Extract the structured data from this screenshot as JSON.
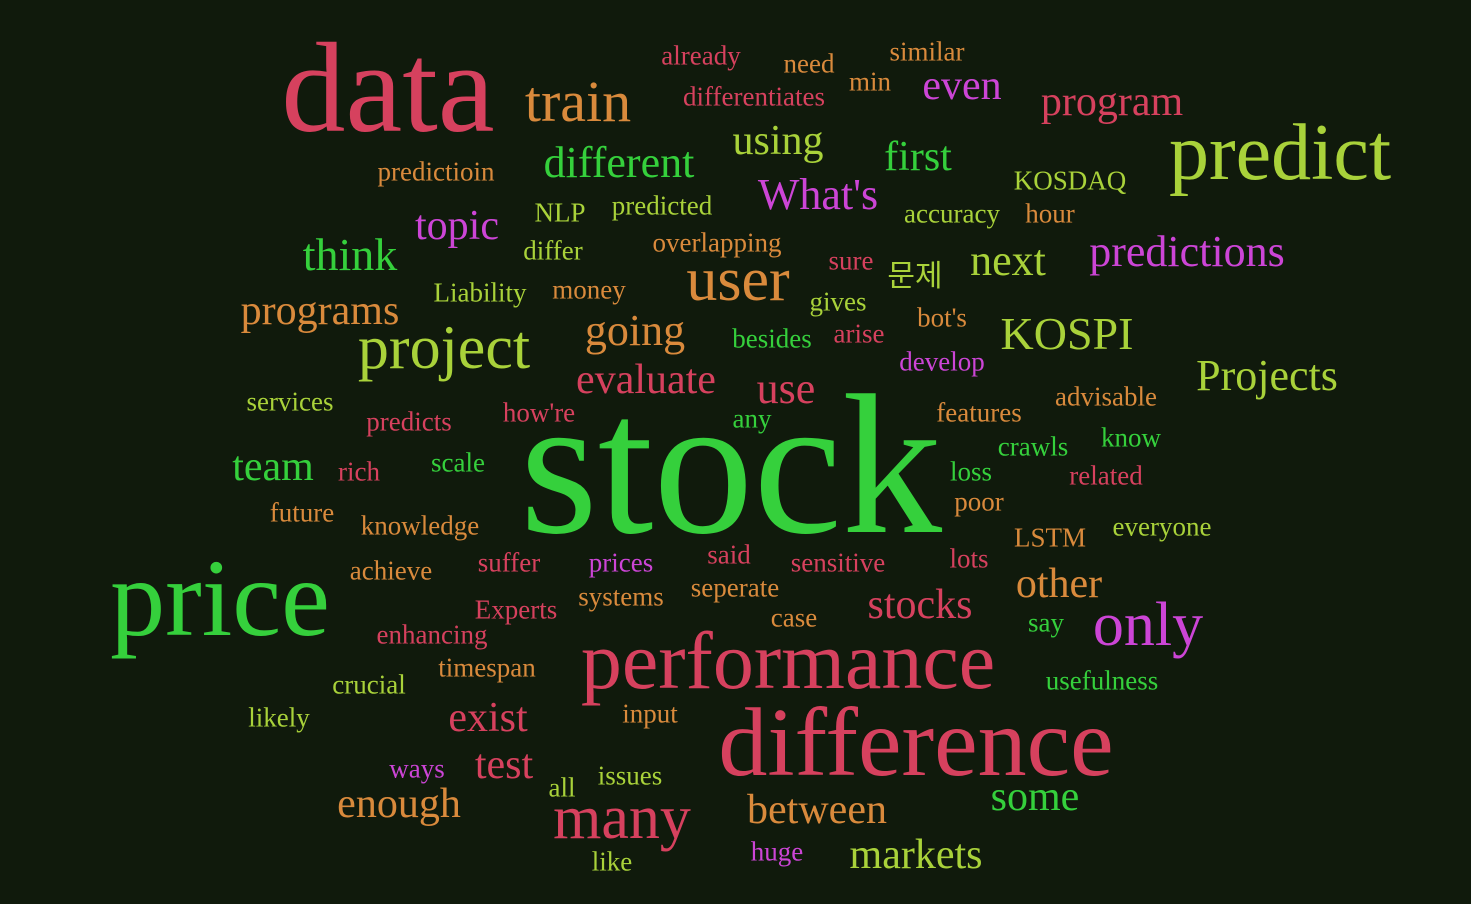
{
  "words": [
    {
      "id": "stock",
      "text": "stock",
      "color": "green"
    },
    {
      "id": "data",
      "text": "data",
      "color": "red"
    },
    {
      "id": "price",
      "text": "price",
      "color": "green"
    },
    {
      "id": "difference",
      "text": "difference",
      "color": "red"
    },
    {
      "id": "performance",
      "text": "performance",
      "color": "red"
    },
    {
      "id": "predict",
      "text": "predict",
      "color": "lime"
    },
    {
      "id": "train",
      "text": "train",
      "color": "orange"
    },
    {
      "id": "project",
      "text": "project",
      "color": "lime"
    },
    {
      "id": "user",
      "text": "user",
      "color": "orange"
    },
    {
      "id": "many",
      "text": "many",
      "color": "red"
    },
    {
      "id": "only",
      "text": "only",
      "color": "magenta"
    },
    {
      "id": "different",
      "text": "different",
      "color": "green"
    },
    {
      "id": "program",
      "text": "program",
      "color": "red"
    },
    {
      "id": "using",
      "text": "using",
      "color": "lime"
    },
    {
      "id": "first",
      "text": "first",
      "color": "green"
    },
    {
      "id": "whats",
      "text": "What's",
      "color": "magenta"
    },
    {
      "id": "topic",
      "text": "topic",
      "color": "magenta"
    },
    {
      "id": "think",
      "text": "think",
      "color": "green"
    },
    {
      "id": "programs",
      "text": "programs",
      "color": "orange"
    },
    {
      "id": "going",
      "text": "going",
      "color": "orange"
    },
    {
      "id": "evaluate",
      "text": "evaluate",
      "color": "red"
    },
    {
      "id": "use",
      "text": "use",
      "color": "red"
    },
    {
      "id": "kospi",
      "text": "KOSPI",
      "color": "lime"
    },
    {
      "id": "next",
      "text": "next",
      "color": "lime"
    },
    {
      "id": "predictions",
      "text": "predictions",
      "color": "magenta"
    },
    {
      "id": "projects",
      "text": "Projects",
      "color": "lime"
    },
    {
      "id": "team",
      "text": "team",
      "color": "green"
    },
    {
      "id": "other",
      "text": "other",
      "color": "orange"
    },
    {
      "id": "stocks",
      "text": "stocks",
      "color": "red"
    },
    {
      "id": "exist",
      "text": "exist",
      "color": "red"
    },
    {
      "id": "test",
      "text": "test",
      "color": "red"
    },
    {
      "id": "enough",
      "text": "enough",
      "color": "orange"
    },
    {
      "id": "between",
      "text": "between",
      "color": "orange"
    },
    {
      "id": "some",
      "text": "some",
      "color": "green"
    },
    {
      "id": "markets",
      "text": "markets",
      "color": "lime"
    },
    {
      "id": "even",
      "text": "even",
      "color": "magenta"
    },
    {
      "id": "already",
      "text": "already",
      "color": "red"
    },
    {
      "id": "need",
      "text": "need",
      "color": "orange"
    },
    {
      "id": "similar",
      "text": "similar",
      "color": "orange"
    },
    {
      "id": "min",
      "text": "min",
      "color": "orange"
    },
    {
      "id": "differentiates",
      "text": "differentiates",
      "color": "red"
    },
    {
      "id": "predictioin",
      "text": "predictioin",
      "color": "orange"
    },
    {
      "id": "kosdaq",
      "text": "KOSDAQ",
      "color": "lime"
    },
    {
      "id": "nlp",
      "text": "NLP",
      "color": "lime"
    },
    {
      "id": "predicted",
      "text": "predicted",
      "color": "lime"
    },
    {
      "id": "accuracy",
      "text": "accuracy",
      "color": "lime"
    },
    {
      "id": "hour",
      "text": "hour",
      "color": "orange"
    },
    {
      "id": "differ",
      "text": "differ",
      "color": "lime"
    },
    {
      "id": "overlapping",
      "text": "overlapping",
      "color": "orange"
    },
    {
      "id": "sure",
      "text": "sure",
      "color": "red"
    },
    {
      "id": "munje",
      "text": "문제",
      "color": "lime"
    },
    {
      "id": "liability",
      "text": "Liability",
      "color": "lime"
    },
    {
      "id": "money",
      "text": "money",
      "color": "orange"
    },
    {
      "id": "gives",
      "text": "gives",
      "color": "lime"
    },
    {
      "id": "bots",
      "text": "bot's",
      "color": "orange"
    },
    {
      "id": "besides",
      "text": "besides",
      "color": "green"
    },
    {
      "id": "arise",
      "text": "arise",
      "color": "red"
    },
    {
      "id": "develop",
      "text": "develop",
      "color": "magenta"
    },
    {
      "id": "services",
      "text": "services",
      "color": "lime"
    },
    {
      "id": "predicts",
      "text": "predicts",
      "color": "red"
    },
    {
      "id": "howre",
      "text": "how're",
      "color": "red"
    },
    {
      "id": "any",
      "text": "any",
      "color": "green"
    },
    {
      "id": "features",
      "text": "features",
      "color": "orange"
    },
    {
      "id": "advisable",
      "text": "advisable",
      "color": "orange"
    },
    {
      "id": "crawls",
      "text": "crawls",
      "color": "green"
    },
    {
      "id": "know",
      "text": "know",
      "color": "green"
    },
    {
      "id": "rich",
      "text": "rich",
      "color": "red"
    },
    {
      "id": "scale",
      "text": "scale",
      "color": "green"
    },
    {
      "id": "loss",
      "text": "loss",
      "color": "green"
    },
    {
      "id": "related",
      "text": "related",
      "color": "red"
    },
    {
      "id": "future",
      "text": "future",
      "color": "orange"
    },
    {
      "id": "knowledge",
      "text": "knowledge",
      "color": "orange"
    },
    {
      "id": "poor",
      "text": "poor",
      "color": "orange"
    },
    {
      "id": "lstm",
      "text": "LSTM",
      "color": "orange"
    },
    {
      "id": "everyone",
      "text": "everyone",
      "color": "lime"
    },
    {
      "id": "said",
      "text": "said",
      "color": "red"
    },
    {
      "id": "achieve",
      "text": "achieve",
      "color": "orange"
    },
    {
      "id": "suffer",
      "text": "suffer",
      "color": "red"
    },
    {
      "id": "prices",
      "text": "prices",
      "color": "magenta"
    },
    {
      "id": "sensitive",
      "text": "sensitive",
      "color": "red"
    },
    {
      "id": "lots",
      "text": "lots",
      "color": "red"
    },
    {
      "id": "systems",
      "text": "systems",
      "color": "orange"
    },
    {
      "id": "seperate",
      "text": "seperate",
      "color": "orange"
    },
    {
      "id": "experts",
      "text": "Experts",
      "color": "red"
    },
    {
      "id": "case",
      "text": "case",
      "color": "orange"
    },
    {
      "id": "say",
      "text": "say",
      "color": "green"
    },
    {
      "id": "enhancing",
      "text": "enhancing",
      "color": "red"
    },
    {
      "id": "timespan",
      "text": "timespan",
      "color": "orange"
    },
    {
      "id": "crucial",
      "text": "crucial",
      "color": "lime"
    },
    {
      "id": "usefulness",
      "text": "usefulness",
      "color": "green"
    },
    {
      "id": "likely",
      "text": "likely",
      "color": "lime"
    },
    {
      "id": "input",
      "text": "input",
      "color": "orange"
    },
    {
      "id": "ways",
      "text": "ways",
      "color": "magenta"
    },
    {
      "id": "all",
      "text": "all",
      "color": "lime"
    },
    {
      "id": "issues",
      "text": "issues",
      "color": "lime"
    },
    {
      "id": "huge",
      "text": "huge",
      "color": "magenta"
    },
    {
      "id": "like",
      "text": "like",
      "color": "lime"
    }
  ]
}
